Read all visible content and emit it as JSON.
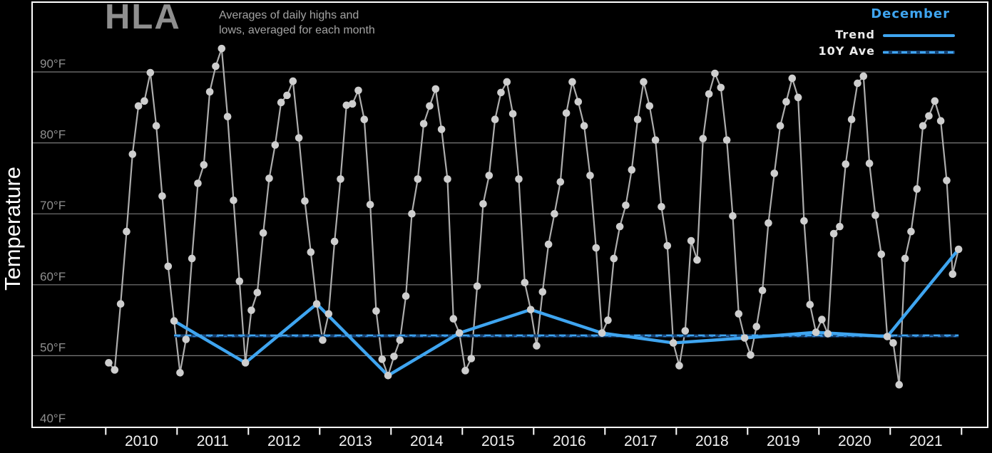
{
  "header": {
    "logo": "HLA",
    "subtitle_line1": "Averages of daily highs and",
    "subtitle_line2": "lows, averaged for each month"
  },
  "legend": {
    "title": "December",
    "trend_label": "Trend",
    "ave_label": "10Y Ave"
  },
  "y_axis": {
    "label": "Temperature",
    "tick_labels": [
      "90°F",
      "80°F",
      "70°F",
      "60°F",
      "50°F",
      "40°F"
    ]
  },
  "x_axis": {
    "year_labels": [
      "2010",
      "2011",
      "2012",
      "2013",
      "2014",
      "2015",
      "2016",
      "2017",
      "2018",
      "2019",
      "2020",
      "2021"
    ]
  },
  "colors": {
    "background": "#000000",
    "accent_blue": "#3fa5f0",
    "ave_dark_blue": "#16406e",
    "series_line_gray": "#adadad",
    "dot_gray": "#cecece",
    "grid_gray": "#7a7a7a",
    "tick_text_gray": "#8f8f8f",
    "white": "#ffffff",
    "title_gray": "#8f8f8f",
    "subtitle_gray": "#a3a3a3"
  },
  "chart_data": {
    "type": "line",
    "title": "HLA",
    "subtitle": "Averages of daily highs and lows, averaged for each month",
    "ylabel": "Temperature",
    "xlabel": "",
    "ylim": [
      40,
      100
    ],
    "y_ticks_f": [
      90,
      80,
      70,
      60,
      50,
      40
    ],
    "grid": "horizontal",
    "legend_position": "top-right",
    "years": [
      2010,
      2011,
      2012,
      2013,
      2014,
      2015,
      2016,
      2017,
      2018,
      2019,
      2020,
      2021
    ],
    "months_per_year": 12,
    "monthly_series": {
      "name": "Monthly average of daily highs and lows (°F)",
      "values_by_year": [
        {
          "year": 2010,
          "values": [
            49.0,
            48.0,
            57.3,
            67.5,
            78.4,
            85.2,
            85.9,
            89.9,
            82.4,
            72.5,
            62.6,
            54.9
          ]
        },
        {
          "year": 2011,
          "values": [
            47.6,
            52.3,
            63.7,
            74.3,
            76.9,
            87.2,
            90.8,
            93.3,
            83.7,
            71.9,
            60.5,
            49.0
          ]
        },
        {
          "year": 2012,
          "values": [
            56.4,
            58.9,
            67.3,
            75.0,
            79.7,
            85.7,
            86.7,
            88.7,
            80.7,
            71.8,
            64.6,
            57.3
          ]
        },
        {
          "year": 2013,
          "values": [
            52.2,
            55.9,
            66.1,
            74.9,
            85.3,
            85.5,
            87.4,
            83.3,
            71.3,
            56.3,
            49.5,
            47.2
          ]
        },
        {
          "year": 2014,
          "values": [
            49.9,
            52.2,
            58.4,
            70.0,
            74.9,
            82.7,
            85.2,
            87.6,
            81.9,
            74.9,
            55.2,
            53.2
          ]
        },
        {
          "year": 2015,
          "values": [
            47.9,
            49.6,
            59.8,
            71.4,
            75.4,
            83.3,
            87.1,
            88.6,
            84.1,
            74.9,
            60.3,
            56.5
          ]
        },
        {
          "year": 2016,
          "values": [
            51.4,
            59.0,
            65.7,
            70.0,
            74.5,
            84.2,
            88.6,
            85.8,
            82.4,
            75.4,
            65.2,
            53.2
          ]
        },
        {
          "year": 2017,
          "values": [
            55.0,
            63.7,
            68.2,
            71.2,
            76.2,
            83.3,
            88.6,
            85.2,
            80.4,
            71.0,
            65.5,
            51.8
          ]
        },
        {
          "year": 2018,
          "values": [
            48.6,
            53.5,
            66.2,
            63.5,
            80.6,
            86.9,
            89.8,
            87.8,
            80.4,
            69.7,
            55.9,
            52.5
          ]
        },
        {
          "year": 2019,
          "values": [
            50.1,
            54.1,
            59.2,
            68.7,
            75.7,
            82.4,
            85.8,
            89.1,
            86.4,
            69.0,
            57.2,
            53.3
          ]
        },
        {
          "year": 2020,
          "values": [
            55.1,
            53.1,
            67.2,
            68.2,
            77.0,
            83.3,
            88.4,
            89.4,
            77.1,
            69.8,
            64.3,
            52.7
          ]
        },
        {
          "year": 2021,
          "values": [
            51.8,
            45.9,
            63.7,
            67.5,
            73.5,
            82.4,
            83.8,
            85.9,
            83.1,
            74.7,
            61.5,
            65.0
          ]
        }
      ]
    },
    "december_trend": {
      "name": "Trend",
      "month": "December",
      "years": [
        2010,
        2011,
        2012,
        2013,
        2014,
        2015,
        2016,
        2017,
        2018,
        2019,
        2020,
        2021
      ],
      "values": [
        54.9,
        49.0,
        57.3,
        47.2,
        53.2,
        56.5,
        53.2,
        51.8,
        52.5,
        53.3,
        52.7,
        65.0
      ]
    },
    "ten_year_average": {
      "name": "10Y Ave",
      "value": 52.8
    }
  }
}
